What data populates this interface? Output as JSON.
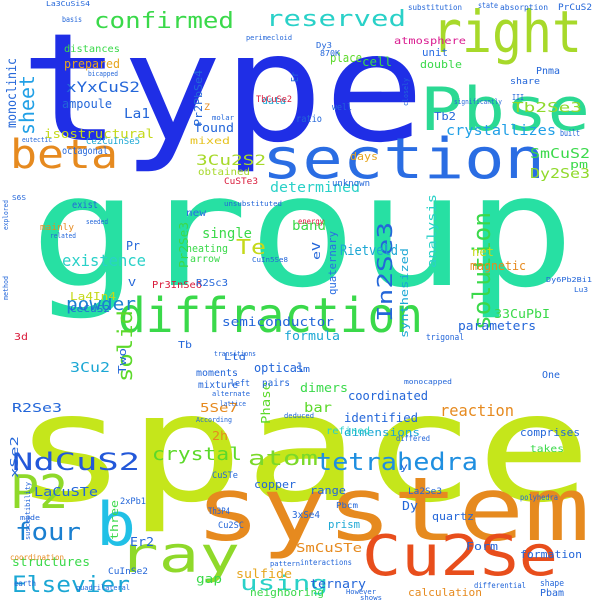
{
  "words": [
    {
      "text": "space",
      "color": "#c5e61b"
    },
    {
      "text": "group",
      "color": "#27e0a3"
    },
    {
      "text": "type",
      "color": "#1f2ee6"
    },
    {
      "text": "system",
      "color": "#e68a1f"
    },
    {
      "text": "diffraction",
      "color": "#3ad94a"
    },
    {
      "text": "section",
      "color": "#2a6de3"
    },
    {
      "text": "Pbse",
      "color": "#2bd993"
    },
    {
      "text": "right",
      "color": "#a7d92a"
    },
    {
      "text": "Cu2Se",
      "color": "#e84e1c"
    },
    {
      "text": "ray",
      "color": "#8fd92a"
    },
    {
      "text": "beta",
      "color": "#e68a1f"
    },
    {
      "text": "b",
      "color": "#21c0e6"
    },
    {
      "text": "P2",
      "color": "#8fd92a"
    },
    {
      "text": "four",
      "color": "#1a7fd0"
    },
    {
      "text": "NdCuS2",
      "color": "#2358d9"
    },
    {
      "text": "Elsevier",
      "color": "#1ba7d4"
    },
    {
      "text": "using",
      "color": "#2ad1c8"
    },
    {
      "text": "atom",
      "color": "#7bd92a"
    },
    {
      "text": "tetrahedra",
      "color": "#1f8fe0"
    },
    {
      "text": "crystal",
      "color": "#5cd92a"
    },
    {
      "text": "solution",
      "color": "#3ad94a"
    },
    {
      "text": "In2Se3",
      "color": "#2366d9"
    },
    {
      "text": "confirmed",
      "color": "#3ad94a"
    },
    {
      "text": "reserved",
      "color": "#2ad1c8"
    },
    {
      "text": "sheet",
      "color": "#21a0e6"
    },
    {
      "text": "Te",
      "color": "#c5d91a"
    },
    {
      "text": "solid",
      "color": "#5cd92a"
    },
    {
      "text": "powder",
      "color": "#1a7fd0"
    },
    {
      "text": "existence",
      "color": "#2ad1c8"
    },
    {
      "text": "SmCuS2",
      "color": "#3ad94a"
    },
    {
      "text": "crystallizes",
      "color": "#21a0e6"
    },
    {
      "text": "Tb2Se3",
      "color": "#8fd92a"
    },
    {
      "text": "Dy2Se3",
      "color": "#8fd92a"
    },
    {
      "text": "xYxCuS2",
      "color": "#2366d9"
    },
    {
      "text": "3Cu2S2",
      "color": "#a7d92a"
    },
    {
      "text": "determined",
      "color": "#2ad1c8"
    },
    {
      "text": "band",
      "color": "#3ad94a"
    },
    {
      "text": "La1",
      "color": "#2366d9"
    },
    {
      "text": "monoclinic",
      "color": "#2366d9"
    },
    {
      "text": "isostructural",
      "color": "#c5d91a"
    },
    {
      "text": "prepared",
      "color": "#e6a61f"
    },
    {
      "text": "ampoule",
      "color": "#2366d9"
    },
    {
      "text": "distances",
      "color": "#3ad94a"
    },
    {
      "text": "Rietveld",
      "color": "#1ba7d4"
    },
    {
      "text": "cell",
      "color": "#3ad94a"
    },
    {
      "text": "unit",
      "color": "#2a6de3"
    },
    {
      "text": "double",
      "color": "#3ad94a"
    },
    {
      "text": "atmosphere",
      "color": "#d91a8f"
    },
    {
      "text": "place",
      "color": "#5cd92a"
    },
    {
      "text": "found",
      "color": "#2366d9"
    },
    {
      "text": "mixed",
      "color": "#e6c21f"
    },
    {
      "text": "obtained",
      "color": "#a7d92a"
    },
    {
      "text": "ratio",
      "color": "#2366d9"
    },
    {
      "text": "data",
      "color": "#1ba7d4"
    },
    {
      "text": "single",
      "color": "#3ad94a"
    },
    {
      "text": "heating",
      "color": "#3ad94a"
    },
    {
      "text": "arrow",
      "color": "#3ad94a"
    },
    {
      "text": "Pr2Se3",
      "color": "#3ad94a"
    },
    {
      "text": "new",
      "color": "#2a6de3"
    },
    {
      "text": "quaternary",
      "color": "#2a6de3"
    },
    {
      "text": "analysis",
      "color": "#2ad1c8"
    },
    {
      "text": "synthesized",
      "color": "#1ba7d4"
    },
    {
      "text": "eV",
      "color": "#2366d9"
    },
    {
      "text": "magnetic",
      "color": "#e68a1f"
    },
    {
      "text": "net",
      "color": "#c5d91a"
    },
    {
      "text": "days",
      "color": "#e6a61f"
    },
    {
      "text": "pm",
      "color": "#3ad94a"
    },
    {
      "text": "semiconductor",
      "color": "#2366d9"
    },
    {
      "text": "formula",
      "color": "#1ba7d4"
    },
    {
      "text": "parameters",
      "color": "#2366d9"
    },
    {
      "text": "33CuPbI",
      "color": "#3ad94a"
    },
    {
      "text": "dimers",
      "color": "#3ad94a"
    },
    {
      "text": "coordinated",
      "color": "#2366d9"
    },
    {
      "text": "identified",
      "color": "#2366d9"
    },
    {
      "text": "bar",
      "color": "#5cd92a"
    },
    {
      "text": "dimensions",
      "color": "#1ba7d4"
    },
    {
      "text": "reaction",
      "color": "#e68a1f"
    },
    {
      "text": "refined",
      "color": "#2ad1c8"
    },
    {
      "text": "comprises",
      "color": "#2366d9"
    },
    {
      "text": "takes",
      "color": "#3ad94a"
    },
    {
      "text": "optical",
      "color": "#2366d9"
    },
    {
      "text": "Phase",
      "color": "#5cd92a"
    },
    {
      "text": "Two",
      "color": "#2366d9"
    },
    {
      "text": "3Cu2",
      "color": "#1ba7d4"
    },
    {
      "text": "R2Se3",
      "color": "#2366d9"
    },
    {
      "text": "5Se7",
      "color": "#e68a1f"
    },
    {
      "text": "LaCuSTe",
      "color": "#2366d9"
    },
    {
      "text": "xSe2",
      "color": "#2366d9"
    },
    {
      "text": "three",
      "color": "#3ad94a"
    },
    {
      "text": "structures",
      "color": "#3ad94a"
    },
    {
      "text": "SmCuSTe",
      "color": "#e68a1f"
    },
    {
      "text": "ternary",
      "color": "#2366d9"
    },
    {
      "text": "sulfide",
      "color": "#e6a61f"
    },
    {
      "text": "gap",
      "color": "#3ad94a"
    },
    {
      "text": "copper",
      "color": "#2366d9"
    },
    {
      "text": "prism",
      "color": "#1ba7d4"
    },
    {
      "text": "quartz",
      "color": "#2366d9"
    },
    {
      "text": "formation",
      "color": "#2366d9"
    },
    {
      "text": "Form",
      "color": "#2366d9"
    },
    {
      "text": "calculation",
      "color": "#e68a1f"
    },
    {
      "text": "range",
      "color": "#2366d9"
    },
    {
      "text": "neighboring",
      "color": "#3ad94a"
    },
    {
      "text": "Er2",
      "color": "#2366d9"
    },
    {
      "text": "Dy",
      "color": "#2366d9"
    },
    {
      "text": "Ltd",
      "color": "#2366d9"
    },
    {
      "text": "Sm",
      "color": "#2366d9"
    },
    {
      "text": "Tb",
      "color": "#2366d9"
    },
    {
      "text": "Er",
      "color": "#2366d9"
    },
    {
      "text": "Pr",
      "color": "#2366d9"
    },
    {
      "text": "Tb2",
      "color": "#2366d9"
    },
    {
      "text": "pairs",
      "color": "#2366d9"
    },
    {
      "text": "mixture",
      "color": "#2366d9"
    },
    {
      "text": "moments",
      "color": "#2366d9"
    },
    {
      "text": "left",
      "color": "#2366d9"
    },
    {
      "text": "2h",
      "color": "#e68a1f"
    },
    {
      "text": "La4In4",
      "color": "#c5d91a"
    },
    {
      "text": "CeCuS2",
      "color": "#2366d9"
    },
    {
      "text": "Pr2PbSe4",
      "color": "#2366d9"
    },
    {
      "text": "Pr3InSe6",
      "color": "#d91a3a"
    },
    {
      "text": "TbCuSe2",
      "color": "#d91a3a"
    },
    {
      "text": "CuSTe3",
      "color": "#d91a3a"
    },
    {
      "text": "Th3P4",
      "color": "#2366d9"
    },
    {
      "text": "Pnma",
      "color": "#2366d9"
    },
    {
      "text": "Pbam",
      "color": "#2366d9"
    },
    {
      "text": "One",
      "color": "#2366d9"
    },
    {
      "text": "trigonal",
      "color": "#2366d9"
    },
    {
      "text": "exist",
      "color": "#2366d9"
    },
    {
      "text": "3d",
      "color": "#d91a3a"
    },
    {
      "text": "V",
      "color": "#2366d9"
    },
    {
      "text": "Z",
      "color": "#e68a1f"
    },
    {
      "text": "unknown",
      "color": "#2366d9"
    },
    {
      "text": "shape",
      "color": "#2366d9"
    },
    {
      "text": "differed",
      "color": "#2366d9"
    },
    {
      "text": "earth",
      "color": "#2366d9"
    },
    {
      "text": "built",
      "color": "#2366d9"
    },
    {
      "text": "share",
      "color": "#2366d9"
    },
    {
      "text": "well",
      "color": "#2366d9"
    },
    {
      "text": "octagonal",
      "color": "#2366d9"
    },
    {
      "text": "mainly",
      "color": "#e68a1f"
    },
    {
      "text": "R2Sc3",
      "color": "#2366d9"
    },
    {
      "text": "Ce2CuInSe5",
      "color": "#1ba7d4"
    },
    {
      "text": "CuInSe2",
      "color": "#2366d9"
    },
    {
      "text": "CuSTe",
      "color": "#2366d9"
    },
    {
      "text": "Cu2SC",
      "color": "#2366d9"
    },
    {
      "text": "La2Se3",
      "color": "#2366d9"
    },
    {
      "text": "3xSe4",
      "color": "#2366d9"
    },
    {
      "text": "2xPb1",
      "color": "#2366d9"
    },
    {
      "text": "y",
      "color": "#2366d9"
    },
    {
      "text": "state",
      "color": "#2366d9"
    },
    {
      "text": "basis",
      "color": "#2366d9"
    },
    {
      "text": "substitution",
      "color": "#2366d9"
    },
    {
      "text": "absorption",
      "color": "#2366d9"
    },
    {
      "text": "PrCuS2",
      "color": "#2366d9"
    },
    {
      "text": "Dy3",
      "color": "#2366d9"
    },
    {
      "text": "870K",
      "color": "#2366d9"
    },
    {
      "text": "III",
      "color": "#2366d9"
    },
    {
      "text": "polyhedra",
      "color": "#2366d9"
    },
    {
      "text": "Pbcm",
      "color": "#2366d9"
    },
    {
      "text": "differential",
      "color": "#2366d9"
    },
    {
      "text": "interactions",
      "color": "#2366d9"
    },
    {
      "text": "However",
      "color": "#2366d9"
    },
    {
      "text": "shows",
      "color": "#2366d9"
    },
    {
      "text": "energy",
      "color": "#d91a3a"
    },
    {
      "text": "bicapped",
      "color": "#2366d9"
    },
    {
      "text": "molar",
      "color": "#2366d9"
    },
    {
      "text": "closely",
      "color": "#2366d9"
    },
    {
      "text": "significantly",
      "color": "#2366d9"
    },
    {
      "text": "monocapped",
      "color": "#2366d9"
    },
    {
      "text": "lattice",
      "color": "#2366d9"
    },
    {
      "text": "alternate",
      "color": "#2366d9"
    },
    {
      "text": "transitions",
      "color": "#2366d9"
    },
    {
      "text": "According",
      "color": "#2366d9"
    },
    {
      "text": "made",
      "color": "#2366d9"
    },
    {
      "text": "coordination",
      "color": "#e68a1f"
    },
    {
      "text": "quadrilateral",
      "color": "#2366d9"
    },
    {
      "text": "susceptibility",
      "color": "#2366d9"
    },
    {
      "text": "pattern",
      "color": "#2366d9"
    },
    {
      "text": "deduced",
      "color": "#2366d9"
    },
    {
      "text": "unsubstituted",
      "color": "#2366d9"
    },
    {
      "text": "seeded",
      "color": "#2366d9"
    },
    {
      "text": "related",
      "color": "#2366d9"
    },
    {
      "text": "explored",
      "color": "#2366d9"
    },
    {
      "text": "method",
      "color": "#2366d9"
    },
    {
      "text": "Dy6Pb2Bi1",
      "color": "#2366d9"
    },
    {
      "text": "Lu3",
      "color": "#2366d9"
    },
    {
      "text": "CuIn5Se8",
      "color": "#2366d9"
    },
    {
      "text": "eutectic",
      "color": "#2366d9"
    },
    {
      "text": "perimecloid",
      "color": "#2366d9"
    },
    {
      "text": "La3CuSiS4",
      "color": "#2366d9"
    },
    {
      "text": "S6S",
      "color": "#2366d9"
    }
  ]
}
